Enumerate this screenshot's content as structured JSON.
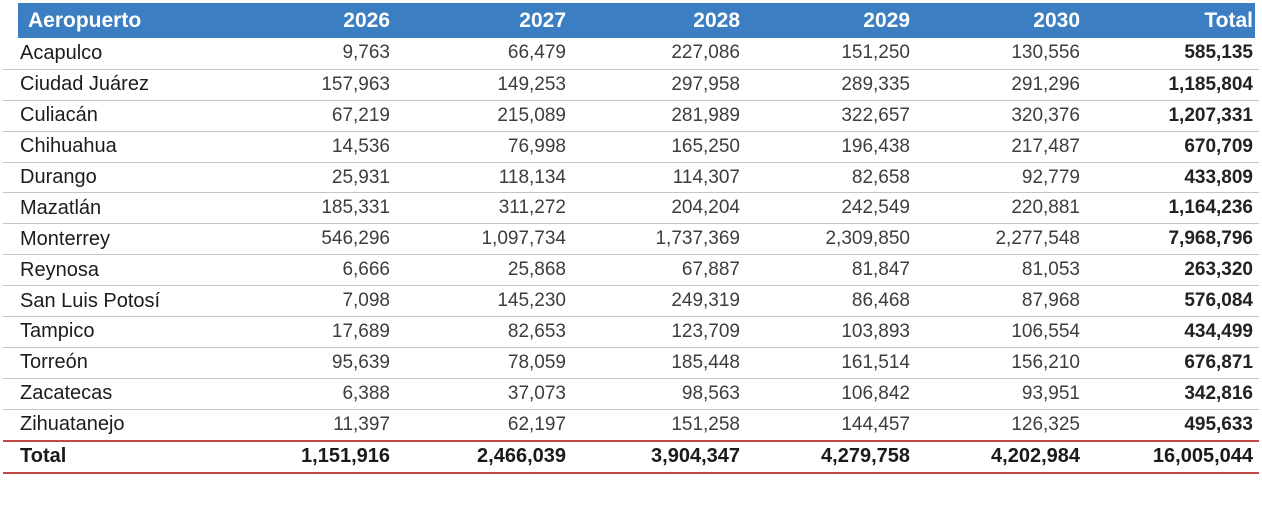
{
  "colors": {
    "header_bg": "#3b7fc2",
    "header_text": "#ffffff",
    "row_divider": "#c6c6c6",
    "total_divider": "#bf4a46",
    "body_text": "#3d3d3d"
  },
  "chart_data": {
    "type": "table",
    "columns": [
      "Aeropuerto",
      "2026",
      "2027",
      "2028",
      "2029",
      "2030",
      "Total"
    ],
    "rows": [
      {
        "name": "Acapulco",
        "values": [
          "9,763",
          "66,479",
          "227,086",
          "151,250",
          "130,556",
          "585,135"
        ]
      },
      {
        "name": "Ciudad Juárez",
        "values": [
          "157,963",
          "149,253",
          "297,958",
          "289,335",
          "291,296",
          "1,185,804"
        ]
      },
      {
        "name": "Culiacán",
        "values": [
          "67,219",
          "215,089",
          "281,989",
          "322,657",
          "320,376",
          "1,207,331"
        ]
      },
      {
        "name": "Chihuahua",
        "values": [
          "14,536",
          "76,998",
          "165,250",
          "196,438",
          "217,487",
          "670,709"
        ]
      },
      {
        "name": "Durango",
        "values": [
          "25,931",
          "118,134",
          "114,307",
          "82,658",
          "92,779",
          "433,809"
        ]
      },
      {
        "name": "Mazatlán",
        "values": [
          "185,331",
          "311,272",
          "204,204",
          "242,549",
          "220,881",
          "1,164,236"
        ]
      },
      {
        "name": "Monterrey",
        "values": [
          "546,296",
          "1,097,734",
          "1,737,369",
          "2,309,850",
          "2,277,548",
          "7,968,796"
        ]
      },
      {
        "name": "Reynosa",
        "values": [
          "6,666",
          "25,868",
          "67,887",
          "81,847",
          "81,053",
          "263,320"
        ]
      },
      {
        "name": "San Luis Potosí",
        "values": [
          "7,098",
          "145,230",
          "249,319",
          "86,468",
          "87,968",
          "576,084"
        ]
      },
      {
        "name": "Tampico",
        "values": [
          "17,689",
          "82,653",
          "123,709",
          "103,893",
          "106,554",
          "434,499"
        ]
      },
      {
        "name": "Torreón",
        "values": [
          "95,639",
          "78,059",
          "185,448",
          "161,514",
          "156,210",
          "676,871"
        ]
      },
      {
        "name": "Zacatecas",
        "values": [
          "6,388",
          "37,073",
          "98,563",
          "106,842",
          "93,951",
          "342,816"
        ]
      },
      {
        "name": "Zihuatanejo",
        "values": [
          "11,397",
          "62,197",
          "151,258",
          "144,457",
          "126,325",
          "495,633"
        ]
      }
    ],
    "total_row": {
      "label": "Total",
      "values": [
        "1,151,916",
        "2,466,039",
        "3,904,347",
        "4,279,758",
        "4,202,984",
        "16,005,044"
      ]
    }
  }
}
